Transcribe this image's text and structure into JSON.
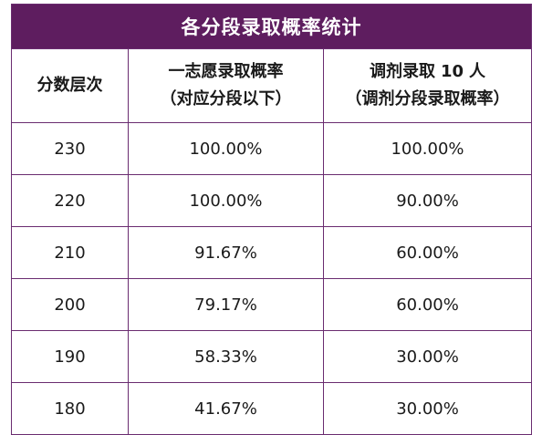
{
  "title": "各分段录取概率统计",
  "headers": {
    "col1": "分数层次",
    "col2_line1": "一志愿录取概率",
    "col2_line2": "（对应分段以下）",
    "col3_prefix": "调剂录取",
    "col3_number": "10",
    "col3_suffix": "人",
    "col3_line2": "（调剂分段录取概率）"
  },
  "rows": [
    {
      "score": "230",
      "first_choice": "100.00%",
      "adjust": "100.00%"
    },
    {
      "score": "220",
      "first_choice": "100.00%",
      "adjust": "90.00%"
    },
    {
      "score": "210",
      "first_choice": "91.67%",
      "adjust": "60.00%"
    },
    {
      "score": "200",
      "first_choice": "79.17%",
      "adjust": "60.00%"
    },
    {
      "score": "190",
      "first_choice": "58.33%",
      "adjust": "30.00%"
    },
    {
      "score": "180",
      "first_choice": "41.67%",
      "adjust": "30.00%"
    }
  ],
  "colors": {
    "title_bg": "#5e1d5f",
    "border": "#6a2c70"
  }
}
